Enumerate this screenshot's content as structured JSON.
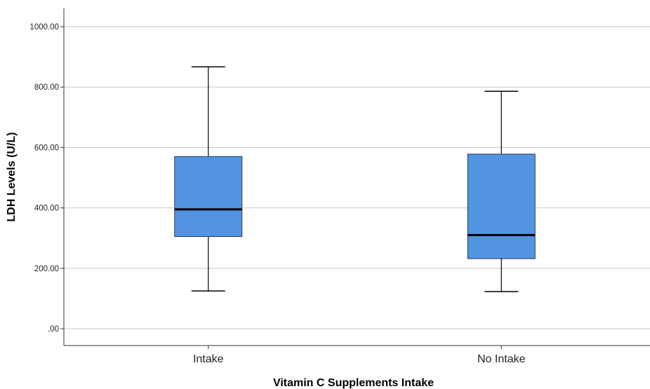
{
  "chart_data": {
    "type": "boxplot",
    "title": "",
    "xlabel": "Vitamin C Supplements Intake",
    "ylabel": "LDH Levels (U/L)",
    "ylim": [
      0,
      1050
    ],
    "yticks": [
      0,
      200,
      400,
      600,
      800,
      1000
    ],
    "ytick_labels": [
      ".00",
      "200.00",
      "400.00",
      "600.00",
      "800.00",
      "1000.00"
    ],
    "grid": "horizontal",
    "box_color": "#5294e2",
    "categories": [
      "Intake",
      "No Intake"
    ],
    "boxes": [
      {
        "category": "Intake",
        "min": 125,
        "q1": 305,
        "median": 395,
        "q3": 570,
        "max": 867
      },
      {
        "category": "No Intake",
        "min": 123,
        "q1": 232,
        "median": 310,
        "q3": 578,
        "max": 786
      }
    ]
  }
}
